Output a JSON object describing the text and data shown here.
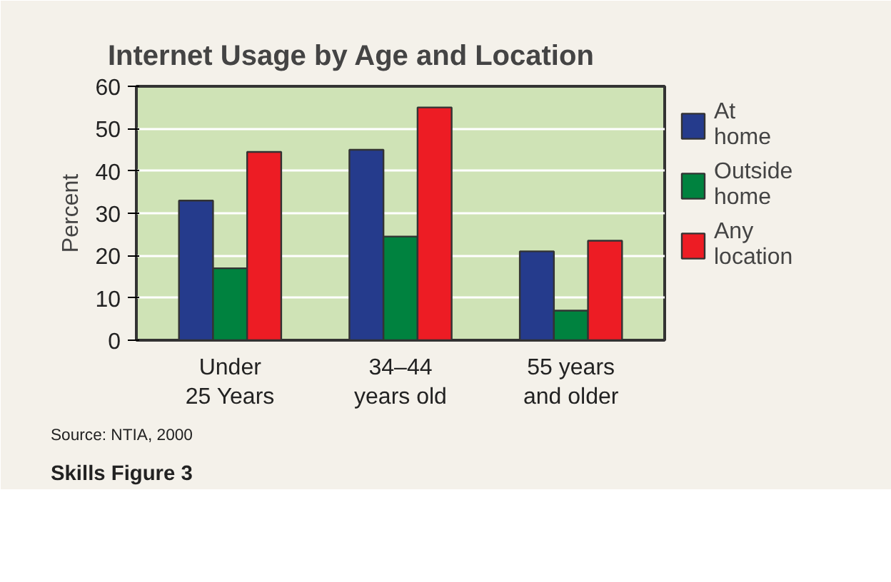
{
  "chart_data": {
    "type": "bar",
    "title": "Internet Usage by Age and Location",
    "ylabel": "Percent",
    "categories": [
      "Under\n25 Years",
      "34–44\nyears old",
      "55 years\nand older"
    ],
    "series": [
      {
        "name": "At home",
        "color": "#253b8c",
        "values": [
          33,
          45,
          21
        ]
      },
      {
        "name": "Outside home",
        "color": "#00823f",
        "values": [
          17,
          24.5,
          7
        ]
      },
      {
        "name": "Any location",
        "color": "#ed1c24",
        "values": [
          44.5,
          55,
          23.5
        ]
      }
    ],
    "ylim": [
      0,
      60
    ],
    "yticks": [
      0,
      10,
      20,
      30,
      40,
      50,
      60
    ],
    "grid": "y",
    "legend": "right",
    "annotations": [
      "Source: NTIA, 2000",
      "Skills Figure 3"
    ]
  }
}
